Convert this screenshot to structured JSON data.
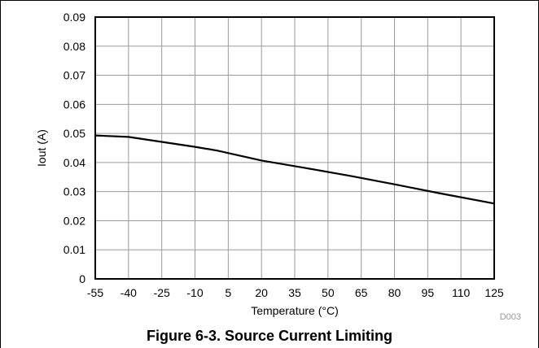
{
  "chart_data": {
    "type": "line",
    "caption": "Figure 6-3. Source Current Limiting",
    "figure_id": "D003",
    "xlabel": "Temperature (°C)",
    "ylabel": "Iout (A)",
    "xlim": [
      -55,
      125
    ],
    "ylim": [
      0,
      0.09
    ],
    "grid": true,
    "x_ticks": [
      -55,
      -40,
      -25,
      -10,
      5,
      20,
      35,
      50,
      65,
      80,
      95,
      110,
      125
    ],
    "y_ticks": [
      "0",
      "0.01",
      "0.02",
      "0.03",
      "0.04",
      "0.05",
      "0.06",
      "0.07",
      "0.08",
      "0.09"
    ],
    "series": [
      {
        "color": "#000000",
        "x": [
          -55,
          -40,
          -25,
          -10,
          0,
          20,
          40,
          60,
          80,
          100,
          125
        ],
        "y": [
          0.0493,
          0.0488,
          0.0471,
          0.0454,
          0.0441,
          0.0407,
          0.0381,
          0.0354,
          0.0325,
          0.0295,
          0.0259
        ]
      }
    ]
  }
}
